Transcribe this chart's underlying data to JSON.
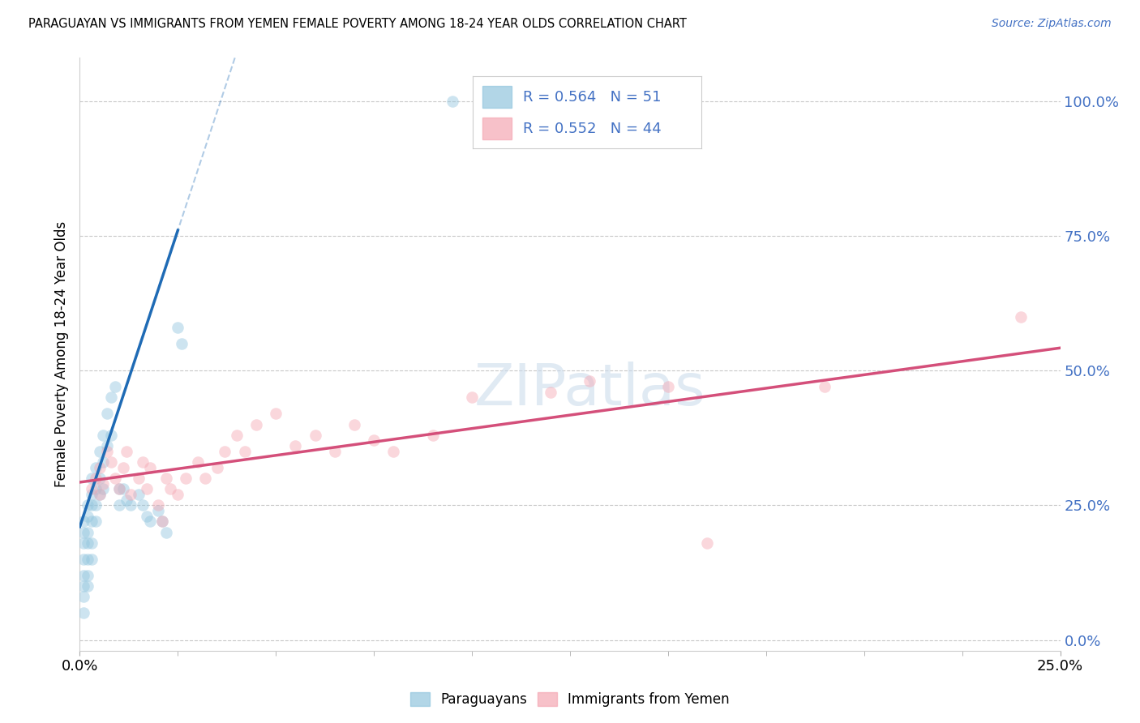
{
  "title": "PARAGUAYAN VS IMMIGRANTS FROM YEMEN FEMALE POVERTY AMONG 18-24 YEAR OLDS CORRELATION CHART",
  "source": "Source: ZipAtlas.com",
  "ylabel": "Female Poverty Among 18-24 Year Olds",
  "xlim": [
    0.0,
    0.25
  ],
  "ylim": [
    -0.02,
    1.08
  ],
  "yticks": [
    0.0,
    0.25,
    0.5,
    0.75,
    1.0
  ],
  "ytick_labels_right": [
    "0.0%",
    "25.0%",
    "50.0%",
    "75.0%",
    "100.0%"
  ],
  "xtick_left_label": "0.0%",
  "xtick_right_label": "25.0%",
  "blue_scatter_color": "#92c5de",
  "pink_scatter_color": "#f4a7b3",
  "blue_line_color": "#1f6bb5",
  "pink_line_color": "#d44f7a",
  "R_blue": 0.564,
  "N_blue": 51,
  "R_pink": 0.552,
  "N_pink": 44,
  "label_color": "#4472c4",
  "marker_size": 110,
  "alpha": 0.45,
  "background_color": "#ffffff",
  "grid_color": "#c8c8c8",
  "paraguayan_x": [
    0.001,
    0.001,
    0.001,
    0.001,
    0.001,
    0.001,
    0.001,
    0.001,
    0.002,
    0.002,
    0.002,
    0.002,
    0.002,
    0.002,
    0.002,
    0.003,
    0.003,
    0.003,
    0.003,
    0.003,
    0.003,
    0.004,
    0.004,
    0.004,
    0.004,
    0.005,
    0.005,
    0.005,
    0.006,
    0.006,
    0.006,
    0.007,
    0.007,
    0.008,
    0.008,
    0.009,
    0.01,
    0.01,
    0.011,
    0.012,
    0.013,
    0.015,
    0.016,
    0.017,
    0.018,
    0.02,
    0.021,
    0.022,
    0.025,
    0.026,
    0.095
  ],
  "paraguayan_y": [
    0.22,
    0.2,
    0.18,
    0.15,
    0.12,
    0.1,
    0.08,
    0.05,
    0.25,
    0.23,
    0.2,
    0.18,
    0.15,
    0.12,
    0.1,
    0.3,
    0.27,
    0.25,
    0.22,
    0.18,
    0.15,
    0.32,
    0.28,
    0.25,
    0.22,
    0.35,
    0.3,
    0.27,
    0.38,
    0.33,
    0.28,
    0.42,
    0.36,
    0.45,
    0.38,
    0.47,
    0.28,
    0.25,
    0.28,
    0.26,
    0.25,
    0.27,
    0.25,
    0.23,
    0.22,
    0.24,
    0.22,
    0.2,
    0.58,
    0.55,
    1.0
  ],
  "yemen_x": [
    0.003,
    0.004,
    0.005,
    0.005,
    0.006,
    0.007,
    0.008,
    0.009,
    0.01,
    0.011,
    0.012,
    0.013,
    0.015,
    0.016,
    0.017,
    0.018,
    0.02,
    0.021,
    0.022,
    0.023,
    0.025,
    0.027,
    0.03,
    0.032,
    0.035,
    0.037,
    0.04,
    0.042,
    0.045,
    0.05,
    0.055,
    0.06,
    0.065,
    0.07,
    0.075,
    0.08,
    0.09,
    0.1,
    0.12,
    0.13,
    0.15,
    0.16,
    0.19,
    0.24
  ],
  "yemen_y": [
    0.28,
    0.3,
    0.27,
    0.32,
    0.29,
    0.35,
    0.33,
    0.3,
    0.28,
    0.32,
    0.35,
    0.27,
    0.3,
    0.33,
    0.28,
    0.32,
    0.25,
    0.22,
    0.3,
    0.28,
    0.27,
    0.3,
    0.33,
    0.3,
    0.32,
    0.35,
    0.38,
    0.35,
    0.4,
    0.42,
    0.36,
    0.38,
    0.35,
    0.4,
    0.37,
    0.35,
    0.38,
    0.45,
    0.46,
    0.48,
    0.47,
    0.18,
    0.47,
    0.6
  ]
}
